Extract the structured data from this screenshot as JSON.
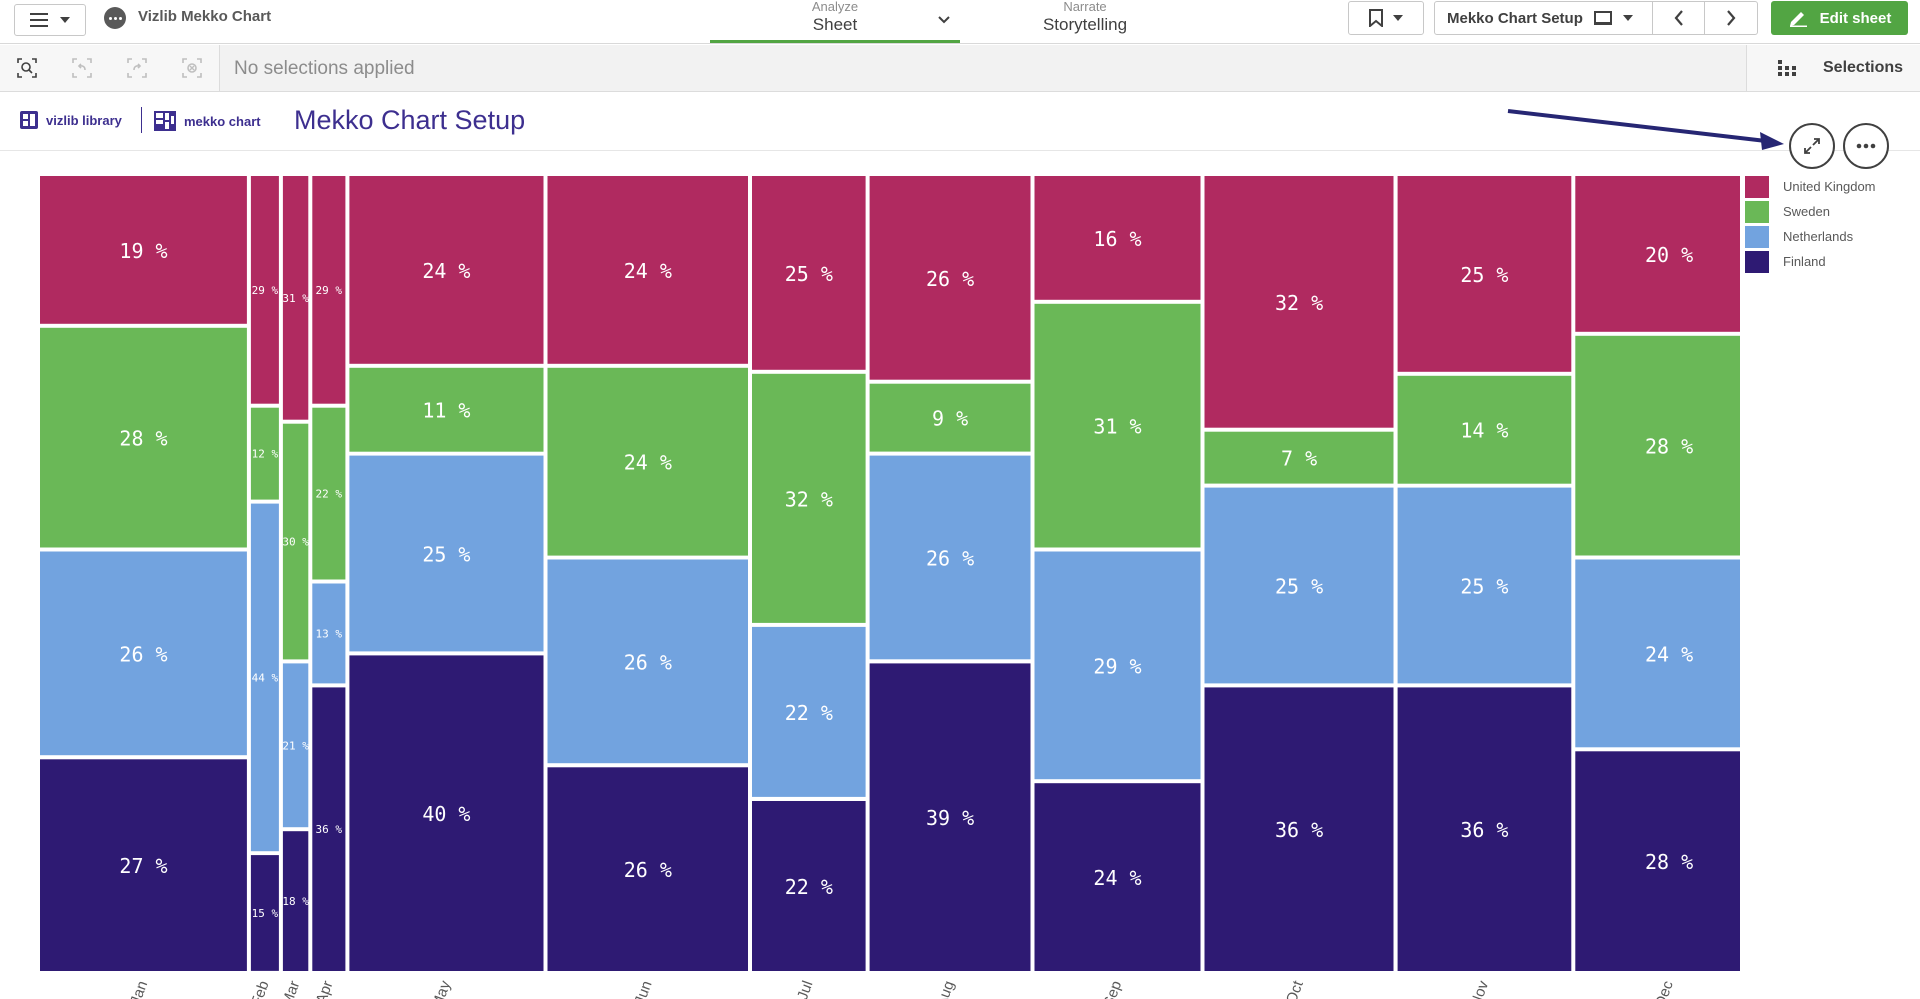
{
  "app": {
    "title": "Vizlib Mekko Chart"
  },
  "tabs": {
    "analyze": {
      "caption": "Analyze",
      "name": "Sheet"
    },
    "narrate": {
      "caption": "Narrate",
      "name": "Storytelling"
    }
  },
  "toolbar": {
    "sheet_name": "Mekko Chart Setup",
    "edit_label": "Edit sheet"
  },
  "selections": {
    "status": "No selections applied",
    "panel_label": "Selections"
  },
  "sheet": {
    "logo_left": "vizlib library",
    "logo_right": "mekko chart",
    "title": "Mekko Chart Setup"
  },
  "colors": {
    "United Kingdom": "#b02a60",
    "Sweden": "#6ab857",
    "Netherlands": "#72a3df",
    "Finland": "#2e1a73",
    "accent": "#52a543",
    "brand": "#3d2f8f"
  },
  "icons": [
    "hamburger-icon",
    "chevron-down-icon",
    "bookmark-icon",
    "sheet-icon",
    "chevron-left-icon",
    "chevron-right-icon",
    "pencil-icon",
    "smart-search-icon",
    "step-back-icon",
    "step-forward-icon",
    "clear-selections-icon",
    "selections-grid-icon",
    "expand-icon",
    "more-icon",
    "annotation-arrow"
  ],
  "chart_data": {
    "type": "mekko",
    "title": "",
    "categories": [
      "Jan",
      "Feb",
      "Mar",
      "Apr",
      "May",
      "Jun",
      "Jul",
      "Aug",
      "Sep",
      "Oct",
      "Nov",
      "Dec"
    ],
    "column_widths": [
      165,
      25,
      23,
      29,
      155,
      160,
      92,
      129,
      133,
      151,
      139,
      150
    ],
    "series": [
      {
        "name": "United Kingdom",
        "values": [
          19,
          29,
          31,
          29,
          24,
          24,
          25,
          26,
          16,
          32,
          25,
          20
        ]
      },
      {
        "name": "Sweden",
        "values": [
          28,
          12,
          30,
          22,
          11,
          24,
          32,
          9,
          31,
          7,
          14,
          28
        ]
      },
      {
        "name": "Netherlands",
        "values": [
          26,
          44,
          21,
          13,
          25,
          26,
          22,
          26,
          29,
          25,
          25,
          24
        ]
      },
      {
        "name": "Finland",
        "values": [
          27,
          15,
          18,
          36,
          40,
          26,
          22,
          39,
          24,
          36,
          36,
          28
        ]
      }
    ],
    "value_suffix": " %",
    "legend": "right",
    "grid": false
  }
}
